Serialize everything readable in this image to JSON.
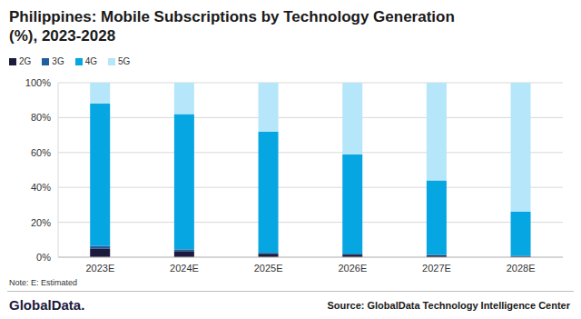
{
  "chart_data": {
    "type": "bar",
    "title": "Philippines: Mobile Subscriptions by Technology Generation (%), 2023-2028",
    "categories": [
      "2023E",
      "2024E",
      "2025E",
      "2026E",
      "2027E",
      "2028E"
    ],
    "series": [
      {
        "name": "2G",
        "color": "#1c1a3d",
        "values": [
          5,
          3.5,
          2,
          1.5,
          1,
          0.5
        ]
      },
      {
        "name": "3G",
        "color": "#1f5f9e",
        "values": [
          1.5,
          1,
          0.5,
          0.5,
          0.3,
          0.3
        ]
      },
      {
        "name": "4G",
        "color": "#06a6e2",
        "values": [
          81.5,
          77.5,
          69.5,
          57,
          42.7,
          25.2
        ]
      },
      {
        "name": "5G",
        "color": "#b5e6fa",
        "values": [
          12,
          18,
          28,
          41,
          56,
          74
        ]
      }
    ],
    "ylim": [
      0,
      100
    ],
    "yticks": [
      {
        "value": 0,
        "label": "0%"
      },
      {
        "value": 20,
        "label": "20%"
      },
      {
        "value": 40,
        "label": "40%"
      },
      {
        "value": 60,
        "label": "60%"
      },
      {
        "value": 80,
        "label": "80%"
      },
      {
        "value": 100,
        "label": "100%"
      }
    ],
    "stacked": true,
    "grid": true,
    "legend": "top-left",
    "note": "Note: E: Estimated",
    "source": "Source: GlobalData Technology Intelligence Center",
    "brand": "GlobalData."
  }
}
